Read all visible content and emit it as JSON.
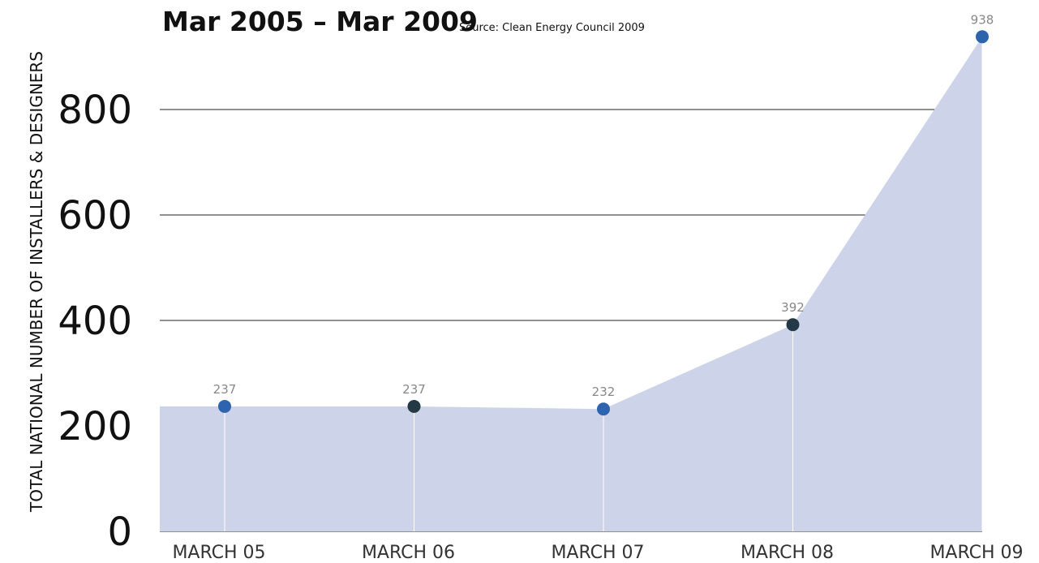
{
  "chart_data": {
    "type": "area",
    "title": "Mar 2005 – Mar 2009",
    "source": "Source: Clean Energy Council 2009",
    "y_label": "TOTAL NATIONAL NUMBER OF INSTALLERS & DESIGNERS",
    "categories": [
      "MARCH 05",
      "MARCH 06",
      "MARCH 07",
      "MARCH 08",
      "MARCH 09"
    ],
    "values": [
      237,
      237,
      232,
      392,
      938
    ],
    "color": "#cdd3e9",
    "point_colors": [
      "#2e64ad",
      "#233a46",
      "#2e64ad",
      "#233a46",
      "#2e64ad"
    ],
    "ylim": [
      0,
      1000
    ],
    "yticks": [
      0,
      200,
      400,
      600,
      800
    ],
    "grid": true
  }
}
